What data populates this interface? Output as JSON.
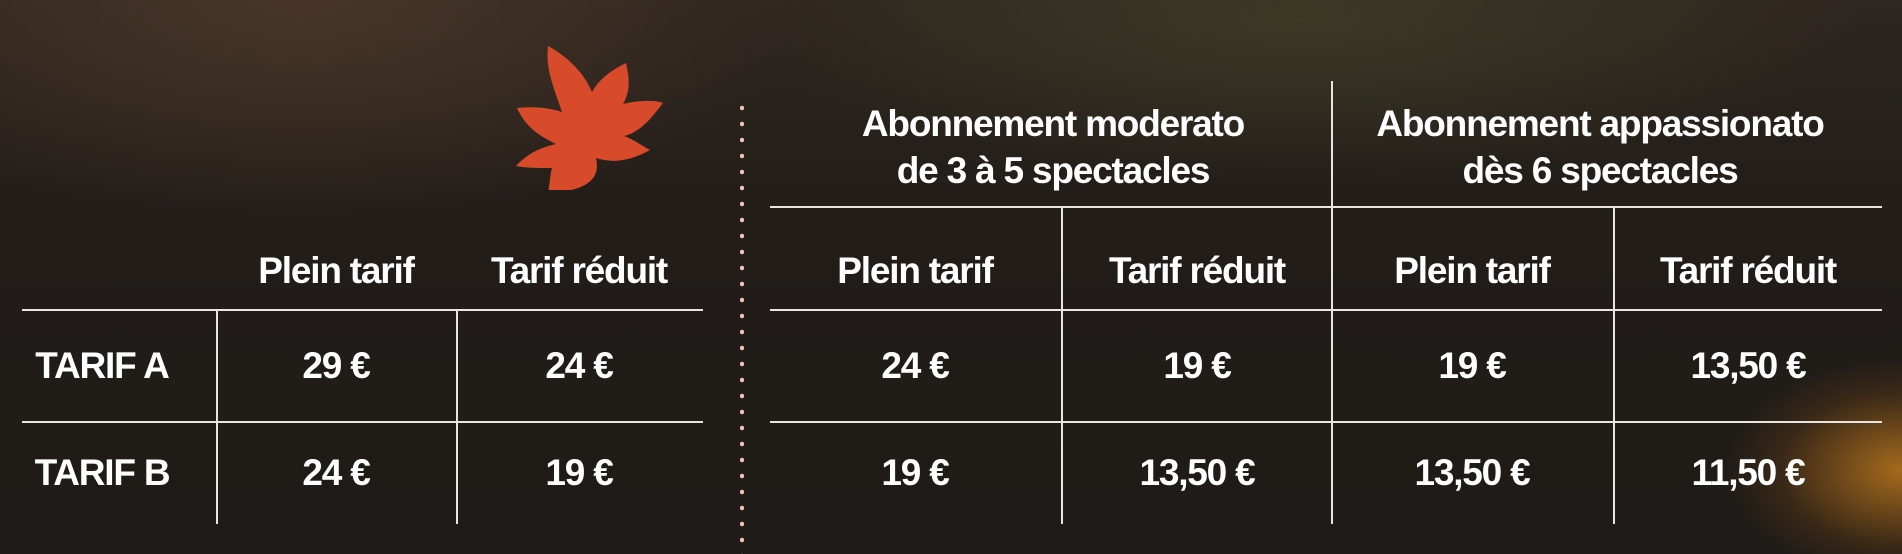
{
  "colors": {
    "leaf": "#d84b2a",
    "dots": "#f1c3b5",
    "lines": "#e8e4df"
  },
  "icon": "maple-leaf-icon",
  "single": {
    "headers": [
      "Plein tarif",
      "Tarif réduit"
    ],
    "rows": [
      {
        "label": "TARIF A",
        "values": [
          "29 €",
          "24 €"
        ]
      },
      {
        "label": "TARIF B",
        "values": [
          "24 €",
          "19 €"
        ]
      }
    ]
  },
  "subscriptions": {
    "groups": [
      {
        "line1": "Abonnement moderato",
        "line2": "de 3 à 5 spectacles"
      },
      {
        "line1": "Abonnement appassionato",
        "line2": "dès 6 spectacles"
      }
    ],
    "headers": [
      "Plein tarif",
      "Tarif réduit",
      "Plein tarif",
      "Tarif réduit"
    ],
    "rows": [
      [
        "24 €",
        "19 €",
        "19 €",
        "13,50 €"
      ],
      [
        "19 €",
        "13,50 €",
        "13,50 €",
        "11,50 €"
      ]
    ]
  }
}
